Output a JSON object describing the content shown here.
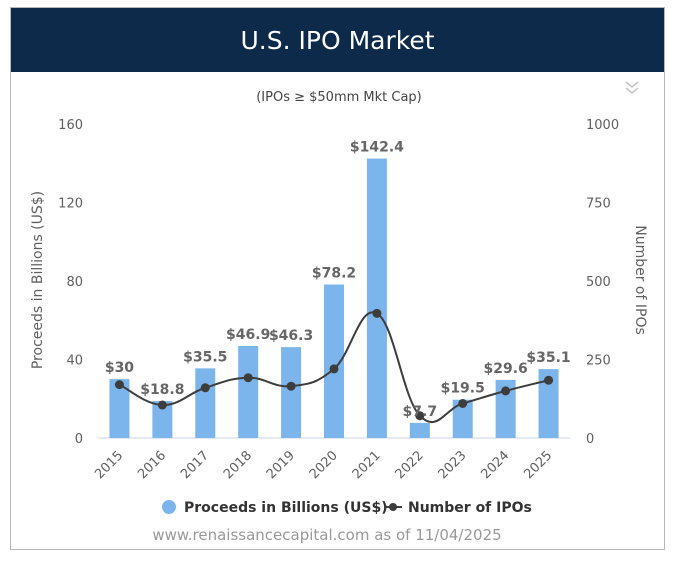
{
  "header": {
    "title": "U.S. IPO Market"
  },
  "credit": "www.renaissancecapital.com as of 11/04/2025",
  "menu_icon": "double-chevron-down-icon",
  "colors": {
    "header_bg": "#0d2a4a",
    "bar": "#7cb5ec",
    "line": "#3d3d3d"
  },
  "chart_data": {
    "type": "bar+line",
    "subtitle": "(IPOs ≥ $50mm Mkt Cap)",
    "categories": [
      "2015",
      "2016",
      "2017",
      "2018",
      "2019",
      "2020",
      "2021",
      "2022",
      "2023",
      "2024",
      "2025"
    ],
    "series": [
      {
        "name": "Proceeds in Billions (US$)",
        "type": "bar",
        "axis": "left",
        "values": [
          30,
          18.8,
          35.5,
          46.9,
          46.3,
          78.2,
          142.4,
          7.7,
          19.5,
          29.6,
          35.1
        ],
        "labels": [
          "$30",
          "$18.8",
          "$35.5",
          "$46.9",
          "$46.3",
          "$78.2",
          "$142.4",
          "$7.7",
          "$19.5",
          "$29.6",
          "$35.1"
        ]
      },
      {
        "name": "Number of IPOs",
        "type": "line",
        "axis": "right",
        "values": [
          170,
          105,
          160,
          192,
          165,
          220,
          397,
          71,
          110,
          150,
          184
        ]
      }
    ],
    "y_left": {
      "label": "Proceeds in Billions (US$)",
      "min": 0,
      "max": 160,
      "ticks": [
        "0",
        "40",
        "80",
        "120",
        "160"
      ]
    },
    "y_right": {
      "label": "Number of IPOs",
      "min": 0,
      "max": 1000,
      "ticks": [
        "0",
        "250",
        "500",
        "750",
        "1000"
      ]
    },
    "grid": false,
    "legend_position": "bottom"
  }
}
